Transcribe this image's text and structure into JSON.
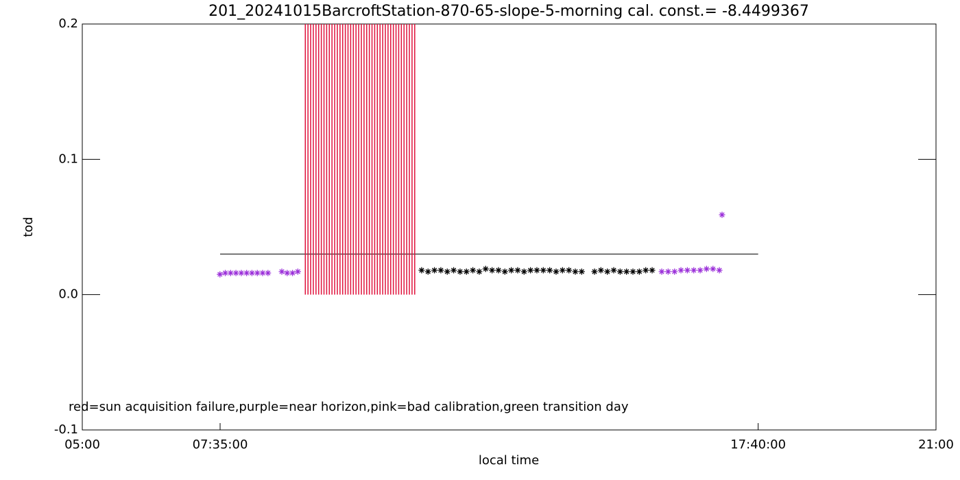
{
  "chart_data": {
    "type": "scatter",
    "title": "201_20241015BarcroftStation-870-65-slope-5-morning cal. const.= -8.4499367",
    "x_label": "local time",
    "y_label": "tod",
    "annotation": "red=sun acquisition failure,purple=near horizon,pink=bad calibration,green transition day",
    "xlim": [
      5,
      21
    ],
    "ylim": [
      -0.1,
      0.2
    ],
    "xticks": [
      {
        "value": 5,
        "label": "05:00"
      },
      {
        "value": 7.583,
        "label": "07:35:00"
      },
      {
        "value": 17.667,
        "label": "17:40:00"
      },
      {
        "value": 21,
        "label": "21:00"
      }
    ],
    "yticks": [
      -0.1,
      {
        "value": 0,
        "label": "0.0"
      },
      0.1,
      0.2
    ],
    "series": [
      {
        "style": "line",
        "color": "#000000",
        "x": [
          7.583,
          17.667
        ],
        "values": [
          0.03,
          0.03
        ]
      },
      {
        "style": "bars",
        "color": "#e0103a",
        "x": [
          9.18,
          9.23,
          9.28,
          9.33,
          9.38,
          9.43,
          9.48,
          9.53,
          9.58,
          9.63,
          9.68,
          9.73,
          9.78,
          9.83,
          9.88,
          9.93,
          9.98,
          10.03,
          10.08,
          10.13,
          10.18,
          10.23,
          10.28,
          10.33,
          10.38,
          10.43,
          10.48,
          10.53,
          10.58,
          10.63,
          10.68,
          10.73,
          10.78,
          10.83,
          10.88,
          10.93,
          10.98,
          11.03,
          11.08,
          11.13,
          11.18,
          11.23
        ],
        "values": [
          0.2,
          0.2,
          0.2,
          0.2,
          0.2,
          0.2,
          0.2,
          0.2,
          0.2,
          0.2,
          0.2,
          0.2,
          0.2,
          0.2,
          0.2,
          0.2,
          0.2,
          0.2,
          0.2,
          0.2,
          0.2,
          0.2,
          0.2,
          0.2,
          0.2,
          0.2,
          0.2,
          0.2,
          0.2,
          0.2,
          0.2,
          0.2,
          0.2,
          0.2,
          0.2,
          0.2,
          0.2,
          0.2,
          0.2,
          0.2,
          0.2,
          0.2
        ]
      },
      {
        "style": "stars",
        "color": "#000000",
        "x": [
          11.36,
          11.48,
          11.6,
          11.72,
          11.84,
          11.96,
          12.08,
          12.2,
          12.32,
          12.44,
          12.56,
          12.68,
          12.8,
          12.92,
          13.04,
          13.16,
          13.28,
          13.4,
          13.52,
          13.64,
          13.76,
          13.88,
          14.0,
          14.12,
          14.24,
          14.36,
          14.6,
          14.72,
          14.84,
          14.96,
          15.08,
          15.2,
          15.32,
          15.44,
          15.56,
          15.68
        ],
        "values": [
          0.018,
          0.017,
          0.018,
          0.018,
          0.017,
          0.018,
          0.017,
          0.017,
          0.018,
          0.017,
          0.019,
          0.018,
          0.018,
          0.017,
          0.018,
          0.018,
          0.017,
          0.018,
          0.018,
          0.018,
          0.018,
          0.017,
          0.018,
          0.018,
          0.017,
          0.017,
          0.017,
          0.018,
          0.017,
          0.018,
          0.017,
          0.017,
          0.017,
          0.017,
          0.018,
          0.018
        ]
      },
      {
        "style": "stars",
        "color": "#9b30d9",
        "x": [
          7.58,
          7.68,
          7.78,
          7.88,
          7.98,
          8.08,
          8.18,
          8.28,
          8.38,
          8.48,
          8.74,
          8.84,
          8.94,
          9.04,
          15.86,
          15.98,
          16.1,
          16.22,
          16.34,
          16.46,
          16.58,
          16.7,
          16.82,
          16.94,
          16.99
        ],
        "values": [
          0.015,
          0.016,
          0.016,
          0.016,
          0.016,
          0.016,
          0.016,
          0.016,
          0.016,
          0.016,
          0.017,
          0.016,
          0.016,
          0.017,
          0.017,
          0.017,
          0.017,
          0.018,
          0.018,
          0.018,
          0.018,
          0.019,
          0.019,
          0.018,
          0.059
        ]
      }
    ]
  }
}
